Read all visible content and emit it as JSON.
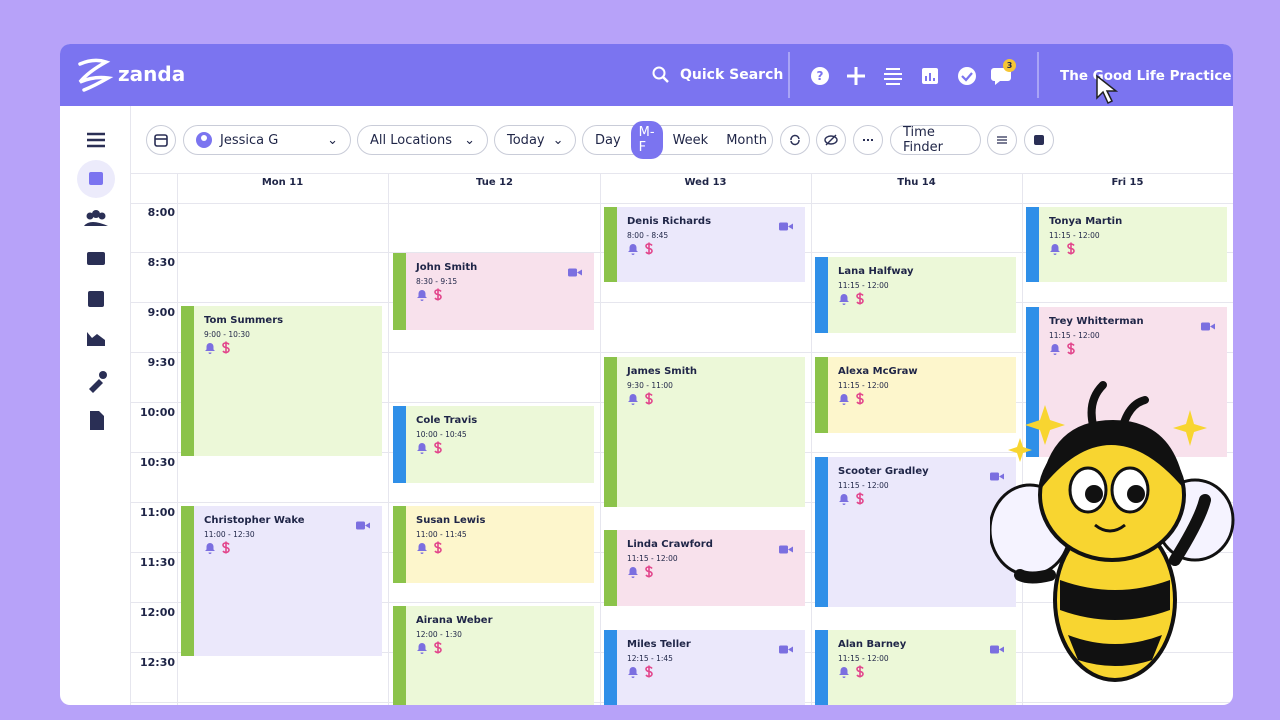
{
  "header": {
    "logo": "zanda",
    "search": "Quick Search",
    "notification_count": 3,
    "practice": "The Good Life Practice"
  },
  "toolbar": {
    "practitioner": "Jessica G",
    "location": "All Locations",
    "date": "Today",
    "views": [
      "Day",
      "M-F",
      "Week",
      "Month"
    ],
    "active_view": 1,
    "time_finder": "Time Finder"
  },
  "calendar": {
    "times": [
      "8:00",
      "8:30",
      "9:00",
      "9:30",
      "10:00",
      "10:30",
      "11:00",
      "11:30",
      "12:00",
      "12:30"
    ],
    "days": [
      {
        "label": "Mon 11",
        "events": [
          {
            "name": "Tom Summers",
            "time": "9:00 - 10:30",
            "color": "#ecf8d8",
            "bar": "#8bc34a",
            "video": false
          },
          {
            "name": "Christopher Wake",
            "time": "11:00 - 12:30",
            "color": "#ebe8fb",
            "bar": "#8bc34a",
            "video": true
          }
        ]
      },
      {
        "label": "Tue 12",
        "events": [
          {
            "name": "John Smith",
            "time": "8:30 - 9:15",
            "color": "#f8e1ec",
            "bar": "#8bc34a",
            "video": true
          },
          {
            "name": "Cole Travis",
            "time": "10:00 - 10:45",
            "color": "#ecf8d8",
            "bar": "#2f8fe8",
            "video": false
          },
          {
            "name": "Susan Lewis",
            "time": "11:00 - 11:45",
            "color": "#fdf6cc",
            "bar": "#8bc34a",
            "video": false
          },
          {
            "name": "Airana Weber",
            "time": "12:00 - 1:30",
            "color": "#ecf8d8",
            "bar": "#8bc34a",
            "video": false
          }
        ]
      },
      {
        "label": "Wed 13",
        "events": [
          {
            "name": "Denis Richards",
            "time": "8:00 - 8:45",
            "color": "#ebe8fb",
            "bar": "#8bc34a",
            "video": true
          },
          {
            "name": "James Smith",
            "time": "9:30 - 11:00",
            "color": "#ecf8d8",
            "bar": "#8bc34a",
            "video": false
          },
          {
            "name": "Linda Crawford",
            "time": "11:15 - 12:00",
            "color": "#f8e1ec",
            "bar": "#8bc34a",
            "video": true
          },
          {
            "name": "Miles Teller",
            "time": "12:15 - 1:45",
            "color": "#ebe8fb",
            "bar": "#2f8fe8",
            "video": true
          }
        ]
      },
      {
        "label": "Thu 14",
        "events": [
          {
            "name": "Lana Halfway",
            "time": "11:15 - 12:00",
            "color": "#ecf8d8",
            "bar": "#2f8fe8",
            "video": false
          },
          {
            "name": "Alexa McGraw",
            "time": "11:15 - 12:00",
            "color": "#fdf6cc",
            "bar": "#8bc34a",
            "video": false
          },
          {
            "name": "Scooter Gradley",
            "time": "11:15 - 12:00",
            "color": "#ebe8fb",
            "bar": "#2f8fe8",
            "video": true
          },
          {
            "name": "Alan Barney",
            "time": "11:15 - 12:00",
            "color": "#ecf8d8",
            "bar": "#2f8fe8",
            "video": true
          }
        ]
      },
      {
        "label": "Fri 15",
        "events": [
          {
            "name": "Tonya Martin",
            "time": "11:15 - 12:00",
            "color": "#ecf8d8",
            "bar": "#2f8fe8",
            "video": false
          },
          {
            "name": "Trey Whitterman",
            "time": "11:15 - 12:00",
            "color": "#f8e1ec",
            "bar": "#2f8fe8",
            "video": true
          }
        ]
      }
    ]
  }
}
